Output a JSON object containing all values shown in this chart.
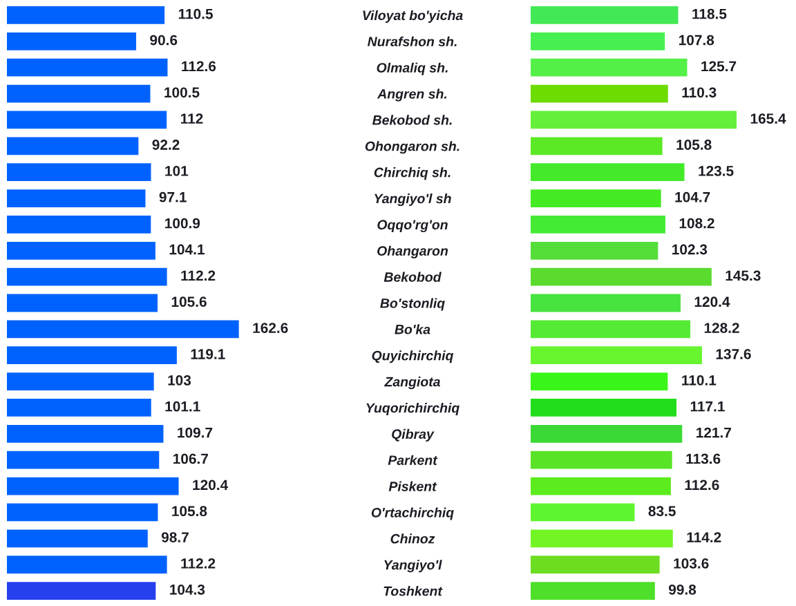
{
  "chart_data": [
    {
      "type": "bar",
      "orientation": "horizontal",
      "data_labels": true,
      "categories": [
        null,
        null,
        null,
        null,
        null,
        null,
        null,
        null,
        null,
        null,
        null,
        null,
        null,
        null,
        null,
        null,
        null,
        null,
        null,
        null,
        null,
        null,
        null
      ],
      "values": [
        110.5,
        90.6,
        112.6,
        100.5,
        112,
        92.2,
        101,
        97.1,
        100.9,
        104.1,
        112.2,
        105.6,
        162.6,
        119.1,
        103,
        101.1,
        109.7,
        106.7,
        120.4,
        105.8,
        98.7,
        112.2,
        104.3
      ],
      "colors": [
        "#0062fe",
        "#0062fe",
        "#0062fe",
        "#0062fe",
        "#0062fe",
        "#0062fe",
        "#0062fe",
        "#0062fe",
        "#0062fe",
        "#0062fe",
        "#0062fe",
        "#0062fe",
        "#0062fe",
        "#0062fe",
        "#0062fe",
        "#0062fe",
        "#0062fe",
        "#0062fe",
        "#0062fe",
        "#0062fe",
        "#0062fe",
        "#0062fe",
        "#2640ee"
      ]
    },
    {
      "type": "bar",
      "orientation": "horizontal",
      "tick_labels": "y",
      "data_labels": true,
      "categories": [
        "Viloyat bo'yicha",
        "Nurafshon sh.",
        "Olmaliq sh.",
        "Angren sh.",
        "Bekobod sh.",
        "Ohongaron sh.",
        "Chirchiq sh.",
        "Yangiyo'l sh",
        "Oqqo'rg'on",
        "Ohangaron",
        "Bekobod",
        "Bo'stonliq",
        "Bo'ka",
        "Quyichirchiq",
        "Zangiota",
        "Yuqorichirchiq",
        "Qibray",
        "Parkent",
        "Piskent",
        "O'rtachirchiq",
        "Chinoz",
        "Yangiyo'l",
        "Toshkent"
      ],
      "values": [
        118.5,
        107.8,
        125.7,
        110.3,
        165.4,
        105.8,
        123.5,
        104.7,
        108.2,
        102.3,
        145.3,
        120.4,
        128.2,
        137.6,
        110.1,
        117.1,
        121.7,
        113.6,
        112.6,
        83.5,
        114.2,
        103.6,
        99.8
      ],
      "colors": [
        "#43e955",
        "#48ef50",
        "#55f047",
        "#6ddc00",
        "#64f03a",
        "#5ce925",
        "#44ea2a",
        "#44ea22",
        "#44ea33",
        "#55dd3a",
        "#5adb2d",
        "#47e33e",
        "#55ea35",
        "#66f52e",
        "#3af51a",
        "#22dd1c",
        "#3bd935",
        "#59e327",
        "#5cec1d",
        "#5cf52f",
        "#73f524",
        "#6ddd22",
        "#4edf2a"
      ]
    }
  ]
}
